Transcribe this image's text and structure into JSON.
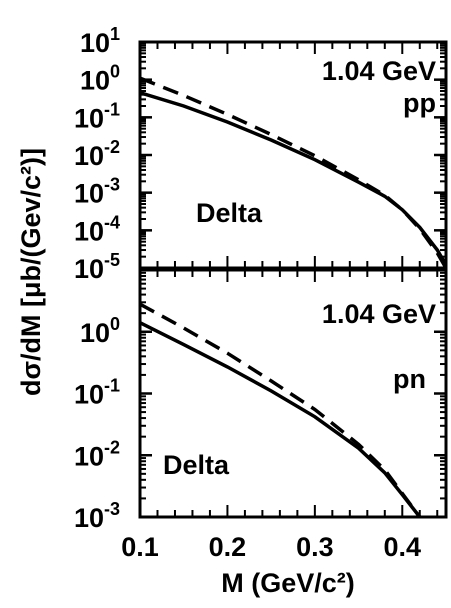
{
  "chart_data": {
    "shared": {
      "ylabel": "dσ/dM [μb/(Gev/c²)]",
      "xlabel": "M (GeV/c²)",
      "xlim": [
        0.1,
        0.45
      ],
      "x_ticks": [
        "0.1",
        "0.2",
        "0.3",
        "0.4"
      ]
    },
    "panels": [
      {
        "type": "line",
        "yscale": "log",
        "ylim": [
          1e-05,
          10
        ],
        "y_ticks": [
          {
            "base": "10",
            "exp": "1"
          },
          {
            "base": "10",
            "exp": "0"
          },
          {
            "base": "10",
            "exp": "-1"
          },
          {
            "base": "10",
            "exp": "-2"
          },
          {
            "base": "10",
            "exp": "-3"
          },
          {
            "base": "10",
            "exp": "-4"
          },
          {
            "base": "10",
            "exp": "-5"
          }
        ],
        "annotations": {
          "energy": "1.04 GeV",
          "reaction": "pp",
          "channel": "Delta"
        },
        "series": [
          {
            "style": "solid",
            "x": [
              0.1,
              0.15,
              0.2,
              0.25,
              0.3,
              0.35,
              0.38,
              0.4,
              0.42,
              0.44,
              0.45
            ],
            "y": [
              0.45,
              0.2,
              0.075,
              0.025,
              0.0075,
              0.0019,
              0.0008,
              0.00035,
              0.00012,
              3e-05,
              1.2e-05
            ]
          },
          {
            "style": "dashed",
            "x": [
              0.1,
              0.15,
              0.2,
              0.25,
              0.3,
              0.35,
              0.38,
              0.4,
              0.42,
              0.44,
              0.45
            ],
            "y": [
              1.1,
              0.38,
              0.12,
              0.035,
              0.0095,
              0.0022,
              0.00085,
              0.00035,
              0.00011,
              2.5e-05,
              1e-05
            ]
          }
        ]
      },
      {
        "type": "line",
        "yscale": "log",
        "ylim": [
          0.001,
          10
        ],
        "y_ticks": [
          {
            "base": "10",
            "exp": "0"
          },
          {
            "base": "10",
            "exp": "-1"
          },
          {
            "base": "10",
            "exp": "-2"
          },
          {
            "base": "10",
            "exp": "-3"
          }
        ],
        "annotations": {
          "energy": "1.04 GeV",
          "reaction": "pn",
          "channel": "Delta"
        },
        "series": [
          {
            "style": "solid",
            "x": [
              0.1,
              0.15,
              0.2,
              0.25,
              0.3,
              0.35,
              0.38,
              0.4,
              0.42
            ],
            "y": [
              1.4,
              0.62,
              0.27,
              0.11,
              0.042,
              0.013,
              0.0052,
              0.0023,
              0.001
            ]
          },
          {
            "style": "dashed",
            "x": [
              0.1,
              0.15,
              0.2,
              0.25,
              0.3,
              0.35,
              0.38,
              0.4,
              0.42
            ],
            "y": [
              2.8,
              1.15,
              0.45,
              0.16,
              0.055,
              0.015,
              0.0058,
              0.0024,
              0.001
            ]
          }
        ]
      }
    ]
  }
}
